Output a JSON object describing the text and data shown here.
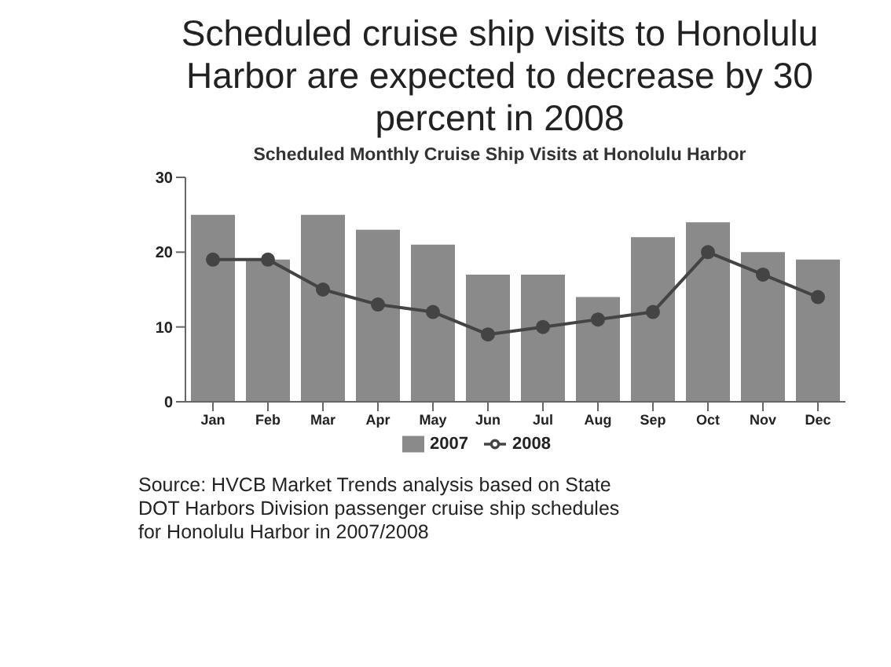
{
  "chart_data": {
    "type": "bar",
    "title": "Scheduled cruise ship visits to Honolulu Harbor are expected to decrease by 30 percent in 2008",
    "subtitle": "Scheduled Monthly Cruise Ship Visits at Honolulu Harbor",
    "categories": [
      "Jan",
      "Feb",
      "Mar",
      "Apr",
      "May",
      "Jun",
      "Jul",
      "Aug",
      "Sep",
      "Oct",
      "Nov",
      "Dec"
    ],
    "series": [
      {
        "name": "2007",
        "color": "#8a8a8a",
        "values": [
          25,
          19,
          25,
          23,
          21,
          17,
          17,
          14,
          22,
          24,
          20,
          19
        ]
      },
      {
        "name": "2008",
        "type": "line",
        "color": "#444444",
        "marker": "circle",
        "values": [
          19,
          19,
          15,
          13,
          12,
          9,
          10,
          11,
          12,
          20,
          17,
          14
        ]
      }
    ],
    "ylim": [
      0,
      30
    ],
    "yticks": [
      0,
      10,
      20,
      30
    ],
    "grid": false,
    "legend": "bottom",
    "annotations": [
      "Source: HVCB Market Trends analysis based on State DOT Harbors Division passenger cruise ship schedules for Honolulu Harbor in 2007/2008"
    ]
  }
}
